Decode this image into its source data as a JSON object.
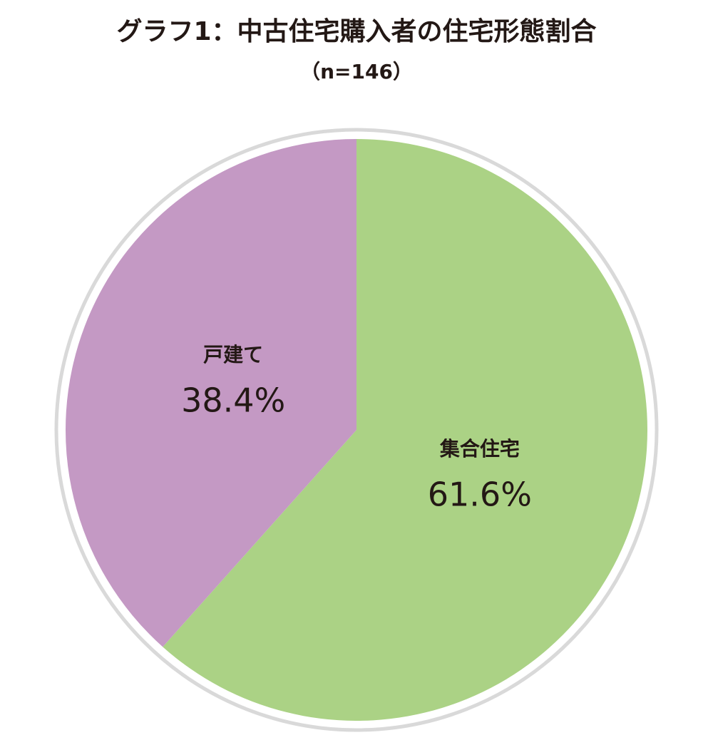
{
  "chart_data": {
    "type": "pie",
    "title": "グラフ1：中古住宅購入者の住宅形態割合",
    "subtitle": "（n=146）",
    "categories": [
      "集合住宅",
      "戸建て"
    ],
    "values": [
      61.6,
      38.4
    ],
    "value_labels": [
      "61.6%",
      "38.4%"
    ],
    "colors": [
      "#abd285",
      "#c499c4"
    ]
  }
}
